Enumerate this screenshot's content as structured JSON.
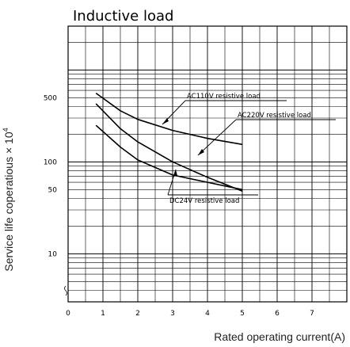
{
  "chart_data": {
    "type": "line",
    "title": "Inductive load",
    "xlabel": "Rated operating current(A)",
    "ylabel": "Service life coperatious × 10",
    "ylabel_exponent": "4",
    "y_scale": "log",
    "xlim": [
      0,
      8
    ],
    "ylim": [
      3,
      3000
    ],
    "x_ticks": [
      "0",
      "1",
      "2",
      "3",
      "4",
      "5",
      "6",
      "7"
    ],
    "y_ticks": [
      {
        "value": 10,
        "label": "10"
      },
      {
        "value": 50,
        "label": "50"
      },
      {
        "value": 100,
        "label": "100"
      },
      {
        "value": 500,
        "label": "500"
      }
    ],
    "grid": true,
    "series": [
      {
        "name": "AC110V resistive load",
        "x": [
          0.8,
          1.5,
          2,
          3,
          4,
          5
        ],
        "y": [
          560,
          360,
          290,
          220,
          180,
          155
        ]
      },
      {
        "name": "AC220V resistive load",
        "x": [
          0.8,
          1.5,
          2,
          3,
          4,
          5
        ],
        "y": [
          430,
          230,
          165,
          100,
          68,
          48
        ]
      },
      {
        "name": "DC24V resistive load",
        "x": [
          0.8,
          1.5,
          2,
          3,
          4,
          5
        ],
        "y": [
          250,
          145,
          105,
          72,
          60,
          50
        ]
      }
    ]
  }
}
